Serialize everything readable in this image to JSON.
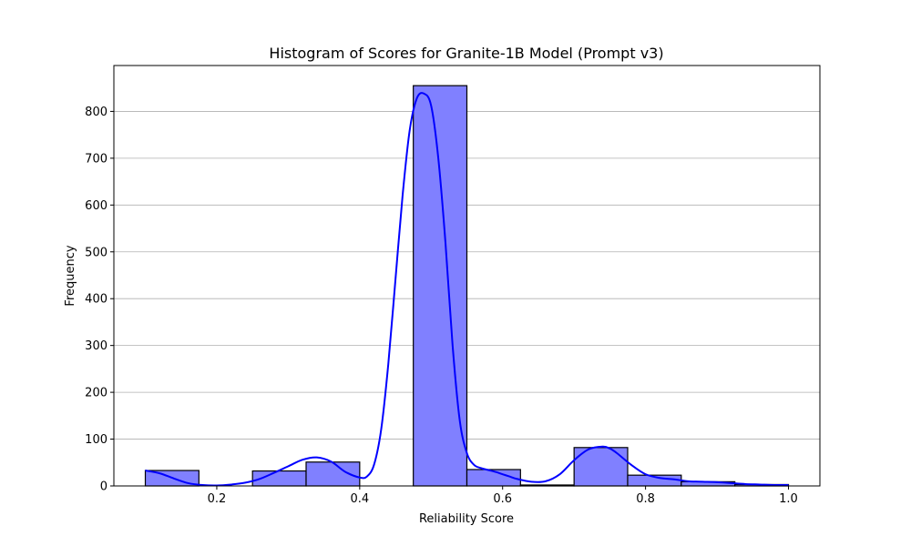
{
  "chart_data": {
    "type": "bar",
    "title": "Histogram of Scores for Granite-1B Model (Prompt v3)",
    "xlabel": "Reliability Score",
    "ylabel": "Frequency",
    "xlim": [
      0.056,
      1.044
    ],
    "ylim": [
      0,
      898
    ],
    "grid": "y",
    "bar_color": "#8080ff",
    "bar_edge_color": "#000000",
    "kde_color": "#0000ff",
    "x_ticks": [
      {
        "value": 0.2,
        "label": "0.2"
      },
      {
        "value": 0.4,
        "label": "0.4"
      },
      {
        "value": 0.6,
        "label": "0.6"
      },
      {
        "value": 0.8,
        "label": "0.8"
      },
      {
        "value": 1.0,
        "label": "1.0"
      }
    ],
    "y_ticks": [
      {
        "value": 0,
        "label": "0"
      },
      {
        "value": 100,
        "label": "100"
      },
      {
        "value": 200,
        "label": "200"
      },
      {
        "value": 300,
        "label": "300"
      },
      {
        "value": 400,
        "label": "400"
      },
      {
        "value": 500,
        "label": "500"
      },
      {
        "value": 600,
        "label": "600"
      },
      {
        "value": 700,
        "label": "700"
      },
      {
        "value": 800,
        "label": "800"
      }
    ],
    "bins": [
      {
        "x0": 0.1,
        "x1": 0.175,
        "count": 33
      },
      {
        "x0": 0.175,
        "x1": 0.25,
        "count": 0
      },
      {
        "x0": 0.25,
        "x1": 0.325,
        "count": 32
      },
      {
        "x0": 0.325,
        "x1": 0.4,
        "count": 51
      },
      {
        "x0": 0.4,
        "x1": 0.475,
        "count": 0
      },
      {
        "x0": 0.475,
        "x1": 0.55,
        "count": 855
      },
      {
        "x0": 0.55,
        "x1": 0.625,
        "count": 35
      },
      {
        "x0": 0.625,
        "x1": 0.7,
        "count": 2
      },
      {
        "x0": 0.7,
        "x1": 0.775,
        "count": 82
      },
      {
        "x0": 0.775,
        "x1": 0.85,
        "count": 23
      },
      {
        "x0": 0.85,
        "x1": 0.925,
        "count": 9
      },
      {
        "x0": 0.925,
        "x1": 1.0,
        "count": 3
      }
    ],
    "kde": {
      "x": [
        0.1,
        0.12,
        0.14,
        0.16,
        0.18,
        0.2,
        0.22,
        0.24,
        0.26,
        0.28,
        0.3,
        0.32,
        0.34,
        0.36,
        0.38,
        0.4,
        0.41,
        0.42,
        0.43,
        0.44,
        0.45,
        0.46,
        0.47,
        0.48,
        0.49,
        0.5,
        0.51,
        0.52,
        0.53,
        0.54,
        0.55,
        0.56,
        0.57,
        0.58,
        0.59,
        0.6,
        0.61,
        0.62,
        0.64,
        0.66,
        0.68,
        0.7,
        0.72,
        0.74,
        0.75,
        0.76,
        0.78,
        0.8,
        0.82,
        0.84,
        0.86,
        0.88,
        0.9,
        0.92,
        0.94,
        0.96,
        0.98,
        1.0
      ],
      "y": [
        33,
        27,
        16,
        6,
        2,
        1,
        3,
        7,
        15,
        28,
        42,
        56,
        61,
        52,
        30,
        18,
        20,
        45,
        120,
        260,
        440,
        620,
        760,
        828,
        838,
        812,
        700,
        520,
        300,
        140,
        70,
        45,
        38,
        34,
        30,
        25,
        20,
        15,
        9,
        10,
        25,
        55,
        78,
        84,
        80,
        70,
        45,
        25,
        17,
        14,
        10,
        9,
        8,
        6,
        4,
        3,
        2,
        2
      ]
    }
  }
}
